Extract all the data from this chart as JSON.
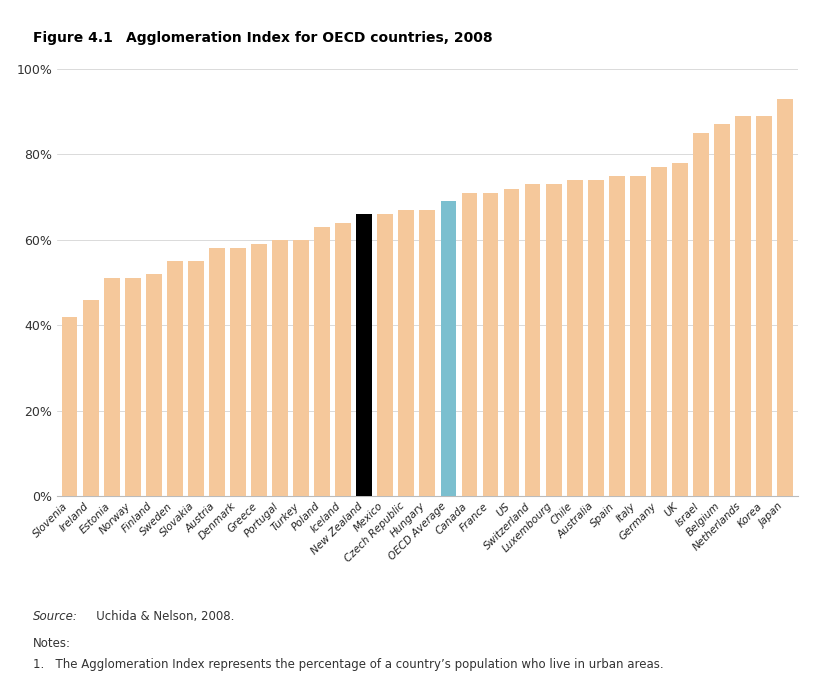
{
  "title_prefix": "Figure 4.1",
  "title_main": "Agglomeration Index for OECD countries, 2008",
  "categories": [
    "Slovenia",
    "Ireland",
    "Estonia",
    "Norway",
    "Finland",
    "Sweden",
    "Slovakia",
    "Austria",
    "Denmark",
    "Greece",
    "Portugal",
    "Turkey",
    "Poland",
    "Iceland",
    "New Zealand",
    "Mexico",
    "Czech Republic",
    "Hungary",
    "OECD Average",
    "Canada",
    "France",
    "US",
    "Switzerland",
    "Luxembourg",
    "Chile",
    "Australia",
    "Spain",
    "Italy",
    "Germany",
    "UK",
    "Israel",
    "Belgium",
    "Netherlands",
    "Korea",
    "Japan"
  ],
  "values": [
    42,
    46,
    51,
    51,
    52,
    55,
    55,
    58,
    58,
    59,
    60,
    60,
    63,
    64,
    66,
    66,
    67,
    67,
    69,
    71,
    71,
    72,
    73,
    73,
    74,
    74,
    75,
    75,
    77,
    78,
    85,
    87,
    89,
    89,
    93
  ],
  "bar_color_default": "#f5c89b",
  "bar_color_nz": "#000000",
  "bar_color_avg": "#7bbfcf",
  "ylim": [
    0,
    100
  ],
  "yticks": [
    0,
    20,
    40,
    60,
    80,
    100
  ],
  "ytick_labels": [
    "0%",
    "20%",
    "40%",
    "60%",
    "80%",
    "100%"
  ],
  "source_label": "Source:",
  "source_text": "   Uchida & Nelson, 2008.",
  "notes_title": "Notes:",
  "notes_text": "1.   The Agglomeration Index represents the percentage of a country’s population who live in urban areas.",
  "background_color": "#ffffff",
  "bar_width": 0.75
}
